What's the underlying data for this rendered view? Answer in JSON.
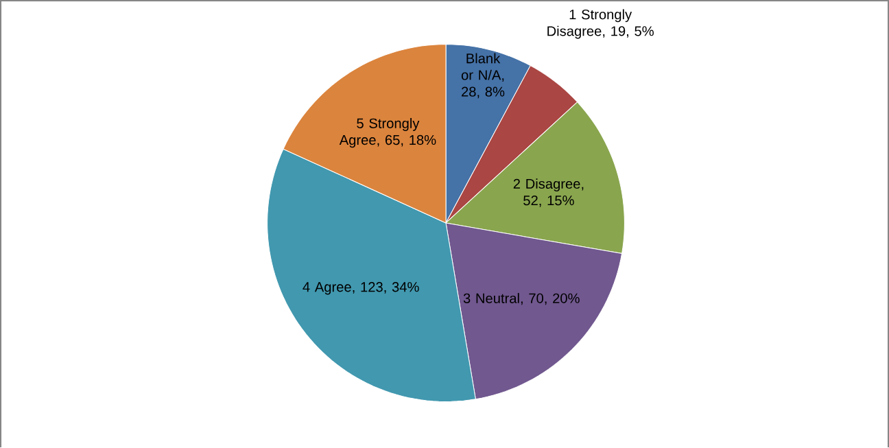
{
  "chart_data": {
    "type": "pie",
    "categories": [
      "Blank or N/A",
      "1 Strongly Disagree",
      "2 Disagree",
      "3 Neutral",
      "4 Agree",
      "5 Strongly Agree"
    ],
    "values": [
      28,
      19,
      52,
      70,
      123,
      65
    ],
    "colors": [
      "#4572a7",
      "#aa4643",
      "#89a54e",
      "#71588f",
      "#4198af",
      "#db843d"
    ],
    "value_labels": [
      ", 28, 8%",
      ", 19, 5%",
      ", 52, 15%",
      ", 70, 20%",
      ", 123, 34%",
      ", 65, 18%"
    ]
  }
}
